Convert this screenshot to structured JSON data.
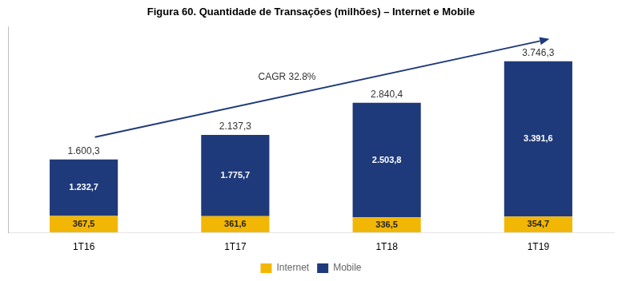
{
  "chart_data": {
    "type": "bar",
    "stacked": true,
    "title": "Figura 60. Quantidade de Transações (milhões) – Internet e Mobile",
    "categories": [
      "1T16",
      "1T17",
      "1T18",
      "1T19"
    ],
    "series": [
      {
        "name": "Internet",
        "color": "#F2B705",
        "values": [
          367.5,
          361.6,
          336.5,
          354.7
        ],
        "value_labels": [
          "367,5",
          "361,6",
          "336,5",
          "354,7"
        ]
      },
      {
        "name": "Mobile",
        "color": "#1F3A7A",
        "values": [
          1232.7,
          1775.7,
          2503.8,
          3391.6
        ],
        "value_labels": [
          "1.232,7",
          "1.775,7",
          "2.503,8",
          "3.391,6"
        ]
      }
    ],
    "totals": [
      1600.3,
      2137.3,
      2840.4,
      3746.3
    ],
    "total_labels": [
      "1.600,3",
      "2.137,3",
      "2.840,4",
      "3.746,3"
    ],
    "annotations": [
      {
        "text": "CAGR 32.8%"
      }
    ],
    "ylim": [
      0,
      4500
    ],
    "tick_labels": "x",
    "grid": false,
    "data_labels": true,
    "legend": "bottom"
  }
}
